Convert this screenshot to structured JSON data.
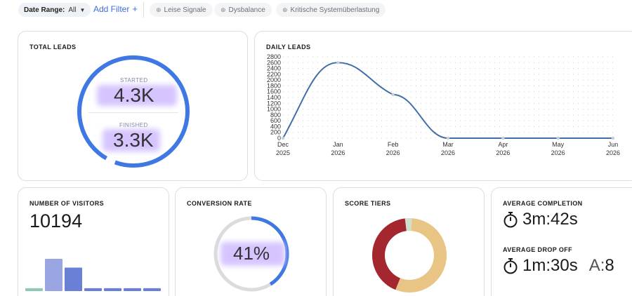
{
  "filters": {
    "date_range_label": "Date Range:",
    "date_range_value": "All",
    "add_filter_label": "Add Filter",
    "chips": [
      "Leise Signale",
      "Dysbalance",
      "Kritische Systemüberlastung"
    ]
  },
  "total_leads": {
    "title": "TOTAL LEADS",
    "started_label": "STARTED",
    "started_value": "4.3K",
    "finished_label": "FINISHED",
    "finished_value": "3.3K"
  },
  "daily_leads": {
    "title": "DAILY LEADS"
  },
  "visitors": {
    "title": "NUMBER OF VISITORS",
    "value": "10194",
    "bars": [
      {
        "value": 1,
        "color": "#8ec9b6"
      },
      {
        "value": 11,
        "color": "#9aa6e4"
      },
      {
        "value": 8,
        "color": "#6a7fd6"
      },
      {
        "value": 1,
        "color": "#6a7fd6"
      },
      {
        "value": 1,
        "color": "#6a7fd6"
      },
      {
        "value": 1,
        "color": "#6a7fd6"
      },
      {
        "value": 1,
        "color": "#6a7fd6"
      }
    ]
  },
  "conversion": {
    "title": "CONVERSION RATE",
    "value": "41%",
    "fraction": 0.41
  },
  "score_tiers": {
    "title": "SCORE TIERS",
    "segments": [
      {
        "value": 0.03,
        "color": "#cfe0cf"
      },
      {
        "value": 0.55,
        "color": "#e9c585"
      },
      {
        "value": 0.42,
        "color": "#a4262f"
      }
    ]
  },
  "completion": {
    "title": "AVERAGE COMPLETION",
    "value": "3m:42s",
    "drop_title": "AVERAGE DROP OFF",
    "drop_value": "1m:30s",
    "a_label": "A:",
    "a_value": "8"
  },
  "chart_data": {
    "type": "line",
    "title": "DAILY LEADS",
    "x": [
      "Dec 2025",
      "Jan 2026",
      "Feb 2026",
      "Mar 2026",
      "Apr 2026",
      "May 2026",
      "Jun 2026"
    ],
    "x_top": [
      "Dec",
      "Jan",
      "Feb",
      "Mar",
      "Apr",
      "May",
      "Jun"
    ],
    "x_bottom": [
      "2025",
      "2026",
      "2026",
      "2026",
      "2026",
      "2026",
      "2026"
    ],
    "series": [
      {
        "values": [
          0,
          2600,
          1500,
          0,
          0,
          0,
          0
        ]
      }
    ],
    "yticks": [
      0,
      200,
      400,
      600,
      800,
      1000,
      1200,
      1400,
      1600,
      1800,
      2000,
      2200,
      2400,
      2600,
      2800
    ],
    "ylim": [
      0,
      2800
    ],
    "grid": "dotted",
    "line_color": "#3f6ea8"
  }
}
